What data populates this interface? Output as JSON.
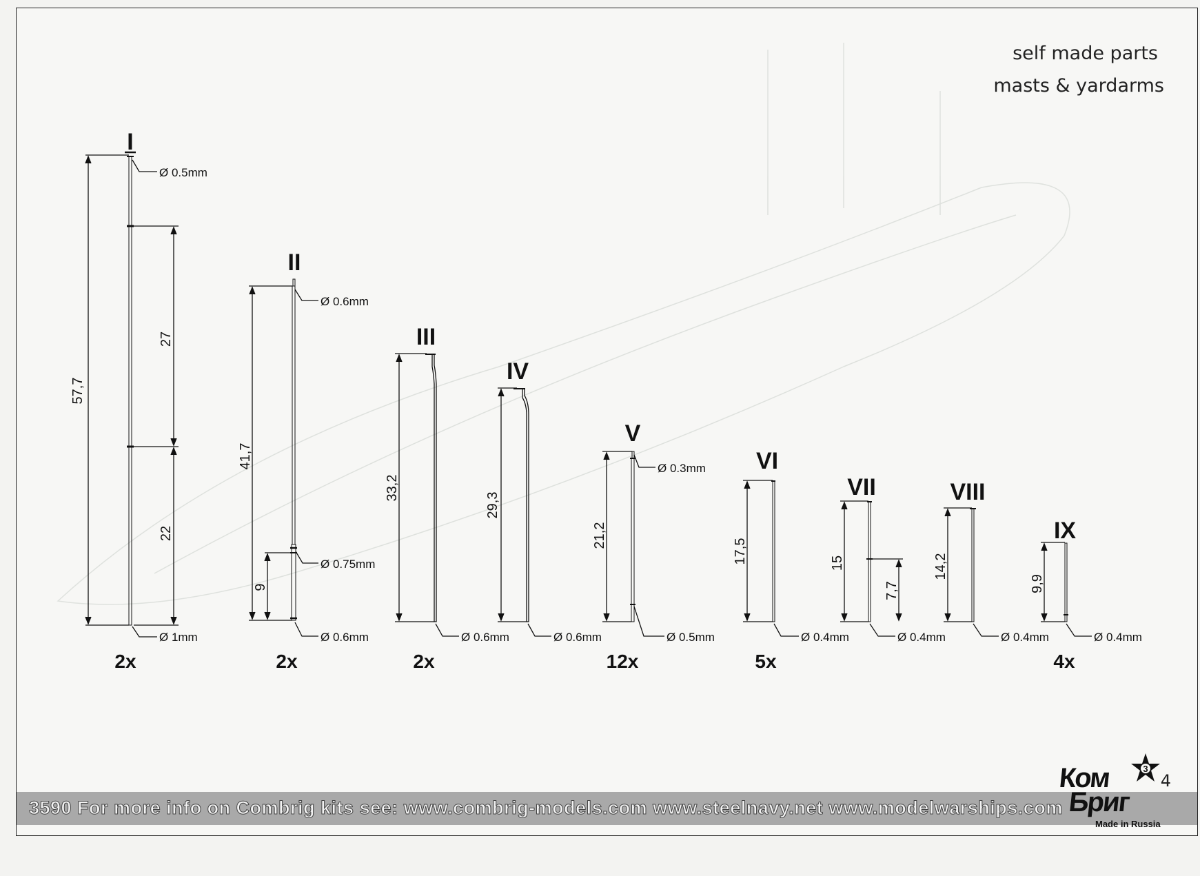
{
  "header": {
    "line1": "self made parts",
    "line2": "masts & yardarms"
  },
  "parts": [
    {
      "roman": "I",
      "qty": "2x",
      "dims": [
        "57,7",
        "27",
        "22"
      ],
      "diameters": [
        "Ø 0.5mm",
        "Ø 1mm"
      ]
    },
    {
      "roman": "II",
      "qty": "2x",
      "dims": [
        "41,7",
        "9"
      ],
      "diameters": [
        "Ø 0.6mm",
        "Ø 0.75mm",
        "Ø 0.6mm"
      ]
    },
    {
      "roman": "III",
      "qty": "2x",
      "dims": [
        "33,2"
      ],
      "diameters": [
        "Ø 0.6mm"
      ]
    },
    {
      "roman": "IV",
      "qty": "",
      "dims": [
        "29,3"
      ],
      "diameters": [
        "Ø 0.6mm"
      ]
    },
    {
      "roman": "V",
      "qty": "12x",
      "dims": [
        "21,2"
      ],
      "diameters": [
        "Ø 0.3mm",
        "Ø 0.5mm"
      ]
    },
    {
      "roman": "VI",
      "qty": "5x",
      "dims": [
        "17,5"
      ],
      "diameters": [
        "Ø 0.4mm"
      ]
    },
    {
      "roman": "VII",
      "qty": "",
      "dims": [
        "15",
        "7,7"
      ],
      "diameters": [
        "Ø 0.4mm"
      ]
    },
    {
      "roman": "VIII",
      "qty": "",
      "dims": [
        "14,2"
      ],
      "diameters": [
        "Ø 0.4mm"
      ]
    },
    {
      "roman": "IX",
      "qty": "4x",
      "dims": [
        "9,9"
      ],
      "diameters": [
        "Ø 0.4mm"
      ]
    }
  ],
  "footer": {
    "text": "3590  For more info on Combrig kits see: www.combrig-models.com www.steelnavy.net  www.modelwarships.com"
  },
  "page_number": "4",
  "logo": {
    "word1": "Ком",
    "word2": "Бриг",
    "tagline": "Made in Russia",
    "star_number": "3"
  },
  "colors": {
    "ink": "#111111",
    "footer_bar": "#a9a9a9",
    "paper": "#f7f7f5"
  }
}
